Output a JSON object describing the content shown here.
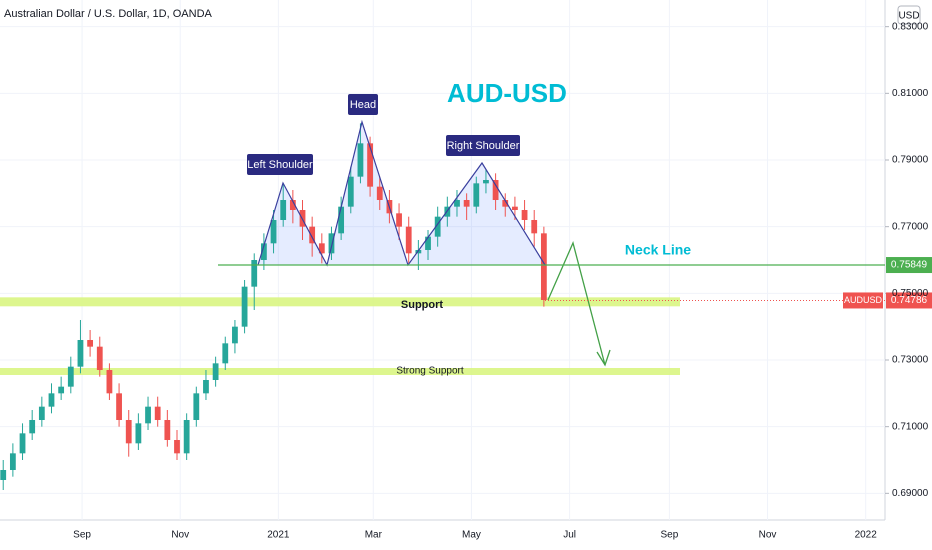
{
  "chart_data": {
    "type": "candlestick",
    "title": "Australian Dollar / U.S. Dollar, 1D, OANDA",
    "currency": "USD",
    "heading": "AUD-USD",
    "labels": {
      "left_shoulder": "Left Shoulder",
      "head": "Head",
      "right_shoulder": "Right Shoulder",
      "neck_line": "Neck Line",
      "support": "Support",
      "strong_support": "Strong Support"
    },
    "x": [
      -18,
      -12,
      -6,
      0,
      6,
      12,
      18,
      24,
      30,
      36,
      42,
      48,
      54,
      60,
      66,
      72,
      78,
      84,
      90,
      96,
      102,
      108,
      114,
      120,
      126,
      132,
      138,
      144,
      150,
      156,
      162,
      168,
      174,
      180,
      186,
      192,
      198,
      204,
      210,
      216,
      222,
      228,
      234,
      240,
      246,
      252,
      258,
      264,
      270,
      276,
      282,
      288,
      294,
      300,
      306,
      312,
      318
    ],
    "open": [
      0.694,
      0.697,
      0.702,
      0.708,
      0.712,
      0.716,
      0.72,
      0.722,
      0.728,
      0.736,
      0.734,
      0.727,
      0.72,
      0.712,
      0.705,
      0.711,
      0.716,
      0.712,
      0.706,
      0.702,
      0.712,
      0.72,
      0.724,
      0.729,
      0.735,
      0.74,
      0.752,
      0.76,
      0.765,
      0.772,
      0.778,
      0.775,
      0.77,
      0.765,
      0.762,
      0.768,
      0.776,
      0.785,
      0.795,
      0.782,
      0.778,
      0.774,
      0.77,
      0.762,
      0.763,
      0.767,
      0.773,
      0.776,
      0.778,
      0.776,
      0.783,
      0.784,
      0.778,
      0.776,
      0.775,
      0.772,
      0.768
    ],
    "high": [
      0.7,
      0.705,
      0.711,
      0.715,
      0.719,
      0.723,
      0.725,
      0.731,
      0.742,
      0.739,
      0.737,
      0.729,
      0.723,
      0.715,
      0.714,
      0.719,
      0.719,
      0.715,
      0.709,
      0.714,
      0.722,
      0.727,
      0.731,
      0.737,
      0.742,
      0.754,
      0.762,
      0.768,
      0.775,
      0.783,
      0.781,
      0.778,
      0.773,
      0.768,
      0.77,
      0.779,
      0.788,
      0.801,
      0.797,
      0.785,
      0.781,
      0.777,
      0.773,
      0.766,
      0.769,
      0.776,
      0.779,
      0.781,
      0.78,
      0.785,
      0.787,
      0.786,
      0.78,
      0.779,
      0.778,
      0.775,
      0.77
    ],
    "low": [
      0.691,
      0.695,
      0.7,
      0.706,
      0.71,
      0.714,
      0.718,
      0.72,
      0.726,
      0.731,
      0.725,
      0.718,
      0.71,
      0.701,
      0.703,
      0.709,
      0.71,
      0.704,
      0.7,
      0.7,
      0.71,
      0.718,
      0.722,
      0.727,
      0.732,
      0.738,
      0.745,
      0.757,
      0.762,
      0.77,
      0.771,
      0.766,
      0.761,
      0.759,
      0.76,
      0.766,
      0.774,
      0.783,
      0.779,
      0.775,
      0.771,
      0.766,
      0.759,
      0.757,
      0.76,
      0.764,
      0.77,
      0.773,
      0.772,
      0.774,
      0.78,
      0.775,
      0.773,
      0.772,
      0.769,
      0.764,
      0.746
    ],
    "close": [
      0.697,
      0.702,
      0.708,
      0.712,
      0.716,
      0.72,
      0.722,
      0.728,
      0.736,
      0.734,
      0.727,
      0.72,
      0.712,
      0.705,
      0.711,
      0.716,
      0.712,
      0.706,
      0.702,
      0.712,
      0.72,
      0.724,
      0.729,
      0.735,
      0.74,
      0.752,
      0.76,
      0.765,
      0.772,
      0.778,
      0.775,
      0.77,
      0.765,
      0.762,
      0.768,
      0.776,
      0.785,
      0.795,
      0.782,
      0.778,
      0.774,
      0.77,
      0.762,
      0.763,
      0.767,
      0.773,
      0.776,
      0.778,
      0.776,
      0.783,
      0.784,
      0.778,
      0.776,
      0.775,
      0.772,
      0.768,
      0.748
    ],
    "up_color": "#26a69a",
    "down_color": "#ef5350",
    "xlim": [
      -20,
      530
    ],
    "xticks": [
      {
        "value": 31,
        "label": "Sep"
      },
      {
        "value": 92,
        "label": "Nov"
      },
      {
        "value": 153,
        "label": "2021"
      },
      {
        "value": 212,
        "label": "Mar"
      },
      {
        "value": 273,
        "label": "May"
      },
      {
        "value": 334,
        "label": "Jul"
      },
      {
        "value": 396,
        "label": "Sep"
      },
      {
        "value": 457,
        "label": "Nov"
      },
      {
        "value": 518,
        "label": "2022"
      }
    ],
    "ylim": [
      0.682,
      0.838
    ],
    "yticks": [
      {
        "value": 0.69,
        "label": "0.69000"
      },
      {
        "value": 0.71,
        "label": "0.71000"
      },
      {
        "value": 0.73,
        "label": "0.73000"
      },
      {
        "value": 0.75,
        "label": "0.75000"
      },
      {
        "value": 0.77,
        "label": "0.77000"
      },
      {
        "value": 0.79,
        "label": "0.79000"
      },
      {
        "value": 0.81,
        "label": "0.81000"
      },
      {
        "value": 0.83,
        "label": "0.83000"
      }
    ],
    "neck_price": {
      "value": 0.75849,
      "label": "0.75849"
    },
    "last_price": {
      "value": 0.74786,
      "label": "0.74786",
      "symbol": "AUDUSD"
    },
    "support_band": [
      0.7461,
      0.7488
    ],
    "strong_support_band": [
      0.7255,
      0.7276
    ]
  }
}
